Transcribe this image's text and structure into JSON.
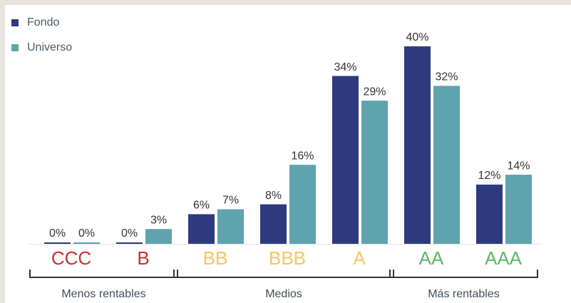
{
  "chart_data": {
    "type": "bar",
    "categories": [
      "CCC",
      "B",
      "BB",
      "BBB",
      "A",
      "AA",
      "AAA"
    ],
    "category_colors": [
      "#cc2f2f",
      "#cc2f2f",
      "#f5c85a",
      "#f5c85a",
      "#f5c85a",
      "#5db865",
      "#5db865"
    ],
    "series": [
      {
        "name": "Fondo",
        "color": "#2e3a7e",
        "values": [
          0,
          0,
          6,
          8,
          34,
          40,
          12
        ],
        "value_labels": [
          "0%",
          "0%",
          "6%",
          "8%",
          "34%",
          "40%",
          "12%"
        ]
      },
      {
        "name": "Universo",
        "color": "#5fa3ae",
        "values": [
          0,
          3,
          7,
          16,
          29,
          32,
          14
        ],
        "value_labels": [
          "0%",
          "3%",
          "7%",
          "16%",
          "29%",
          "32%",
          "14%"
        ]
      }
    ],
    "groups": [
      {
        "label": "Menos rentables",
        "span": [
          0,
          1
        ]
      },
      {
        "label": "Medios",
        "span": [
          2,
          4
        ]
      },
      {
        "label": "Más rentables",
        "span": [
          5,
          6
        ]
      }
    ]
  }
}
